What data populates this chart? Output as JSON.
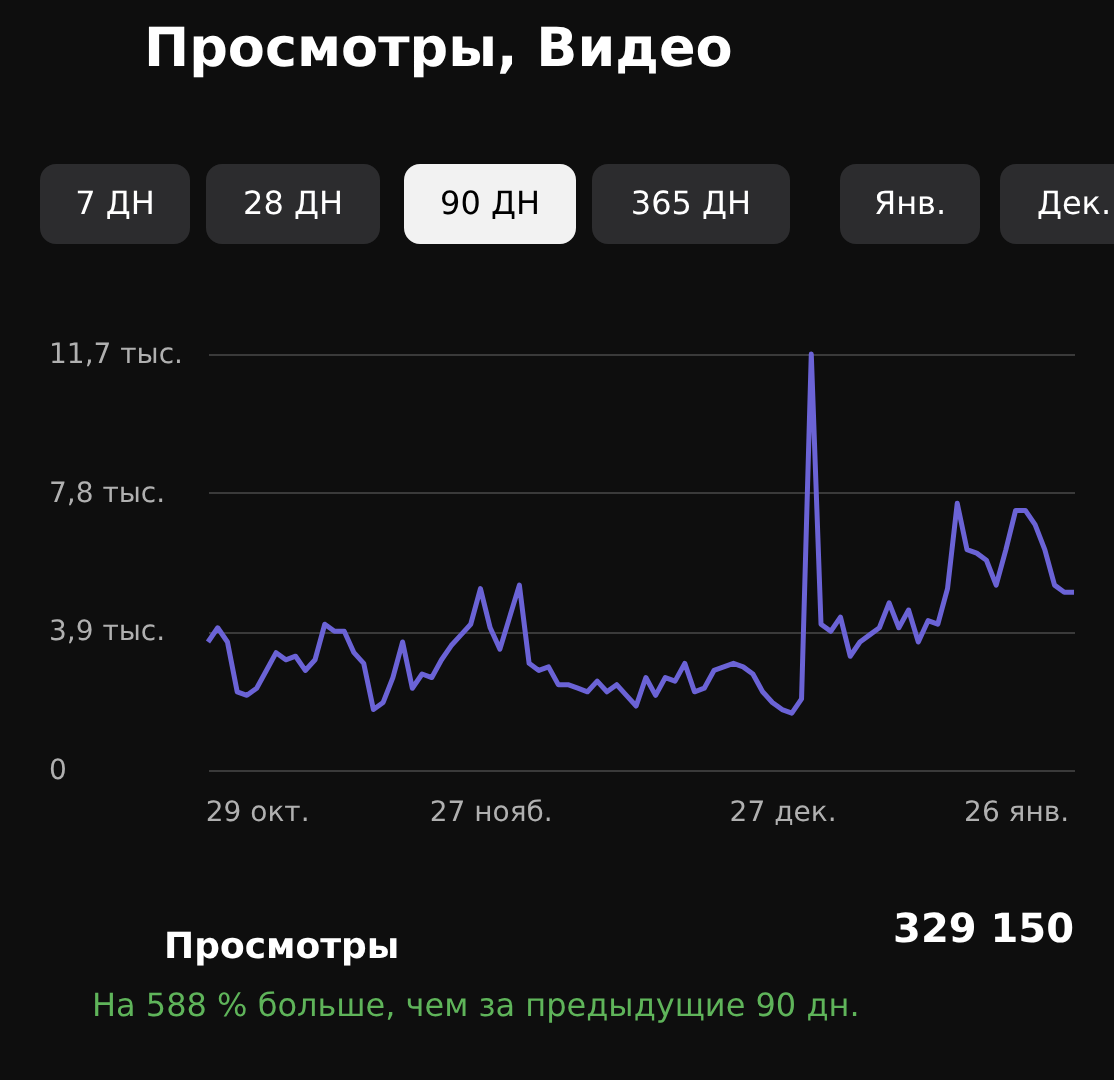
{
  "chart_data": {
    "type": "line",
    "title": "Просмотры, Видео",
    "categories": [
      null,
      null,
      null,
      null,
      null,
      "29 окт.",
      null,
      null,
      null,
      null,
      null,
      null,
      null,
      null,
      null,
      null,
      null,
      null,
      null,
      null,
      null,
      null,
      null,
      null,
      null,
      null,
      null,
      null,
      null,
      "27 нояб.",
      null,
      null,
      null,
      null,
      null,
      null,
      null,
      null,
      null,
      null,
      null,
      null,
      null,
      null,
      null,
      null,
      null,
      null,
      null,
      null,
      null,
      null,
      null,
      null,
      null,
      null,
      null,
      null,
      null,
      "27 дек.",
      null,
      null,
      null,
      null,
      null,
      null,
      null,
      null,
      null,
      null,
      null,
      null,
      null,
      null,
      null,
      null,
      null,
      null,
      null,
      null,
      null,
      null,
      null,
      "26 янв.",
      null,
      null,
      null,
      null,
      null,
      null
    ],
    "series": [
      {
        "name": "Просмотры",
        "color": "#6b63d6",
        "values": [
          3.6,
          4.0,
          3.6,
          2.2,
          2.1,
          2.3,
          2.8,
          3.3,
          3.1,
          3.2,
          2.8,
          3.1,
          4.1,
          3.9,
          3.9,
          3.3,
          3.0,
          1.7,
          1.9,
          2.6,
          3.6,
          2.3,
          2.7,
          2.6,
          3.1,
          3.5,
          3.8,
          4.1,
          5.1,
          4.0,
          3.4,
          4.3,
          5.2,
          3.0,
          2.8,
          2.9,
          2.4,
          2.4,
          2.3,
          2.2,
          2.5,
          2.2,
          2.4,
          2.1,
          1.8,
          2.6,
          2.1,
          2.6,
          2.5,
          3.0,
          2.2,
          2.3,
          2.8,
          2.9,
          3.0,
          2.9,
          2.7,
          2.2,
          1.9,
          1.7,
          1.6,
          2.0,
          11.7,
          4.1,
          3.9,
          4.3,
          3.2,
          3.6,
          3.8,
          4.0,
          4.7,
          4.0,
          4.5,
          3.6,
          4.2,
          4.1,
          5.1,
          7.5,
          6.2,
          6.1,
          5.9,
          5.2,
          6.2,
          7.3,
          7.3,
          6.9,
          6.2,
          5.2,
          5.0,
          5.0
        ]
      }
    ],
    "ylim": [
      0,
      11.7
    ],
    "yticks": [
      {
        "value": 0,
        "label": "0"
      },
      {
        "value": 3.9,
        "label": "3,9 тыс."
      },
      {
        "value": 7.8,
        "label": "7,8 тыс."
      },
      {
        "value": 11.7,
        "label": "11,7 тыс."
      }
    ],
    "grid": "y",
    "legend": "bottom",
    "marker": "none",
    "line_style": "solid",
    "annotations": [
      "7 ДН",
      "28 ДН",
      "90 ДН",
      "365 ДН",
      "Янв.",
      "Дек.",
      "329 150",
      "На 588 % больше, чем за предыдущие 90 дн."
    ]
  }
}
